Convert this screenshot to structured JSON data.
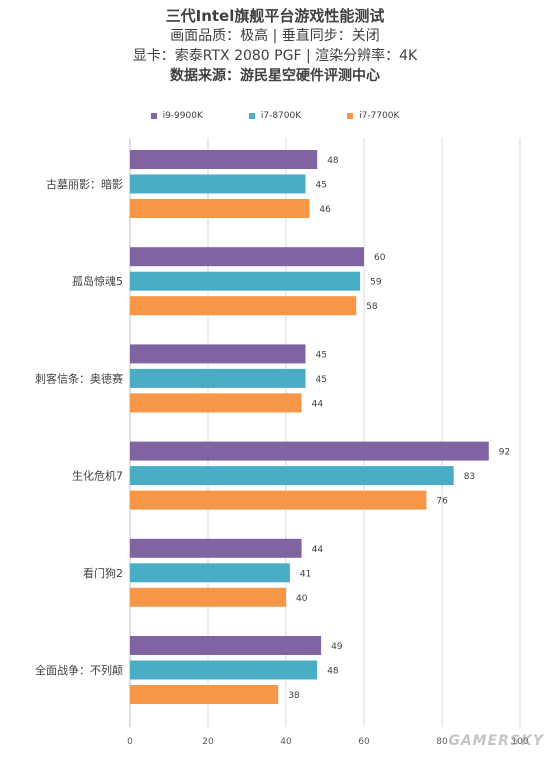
{
  "chart_data": {
    "type": "bar",
    "orientation": "horizontal",
    "title": "三代Intel旗舰平台游戏性能测试",
    "subtitle_lines": [
      "画面品质：极高 | 垂直同步：关闭",
      "显卡：索泰RTX 2080 PGF | 渲染分辨率：4K"
    ],
    "source": "数据来源：游民星空硬件评测中心",
    "categories": [
      "古墓丽影：暗影",
      "孤岛惊魂5",
      "刺客信条：奥德赛",
      "生化危机7",
      "看门狗2",
      "全面战争：不列颠"
    ],
    "series": [
      {
        "name": "i9-9900K",
        "color": "#8064a2",
        "values": [
          48,
          60,
          45,
          92,
          44,
          49
        ]
      },
      {
        "name": "i7-8700K",
        "color": "#4bacc6",
        "values": [
          45,
          59,
          45,
          83,
          41,
          48
        ]
      },
      {
        "name": "i7-7700K",
        "color": "#f79646",
        "values": [
          46,
          58,
          44,
          76,
          40,
          38
        ]
      }
    ],
    "xlim": [
      0,
      100
    ],
    "xticks": [
      0,
      20,
      40,
      60,
      80,
      100
    ],
    "grid": true,
    "legend_position": "top"
  },
  "watermark": "GAMERSKY"
}
